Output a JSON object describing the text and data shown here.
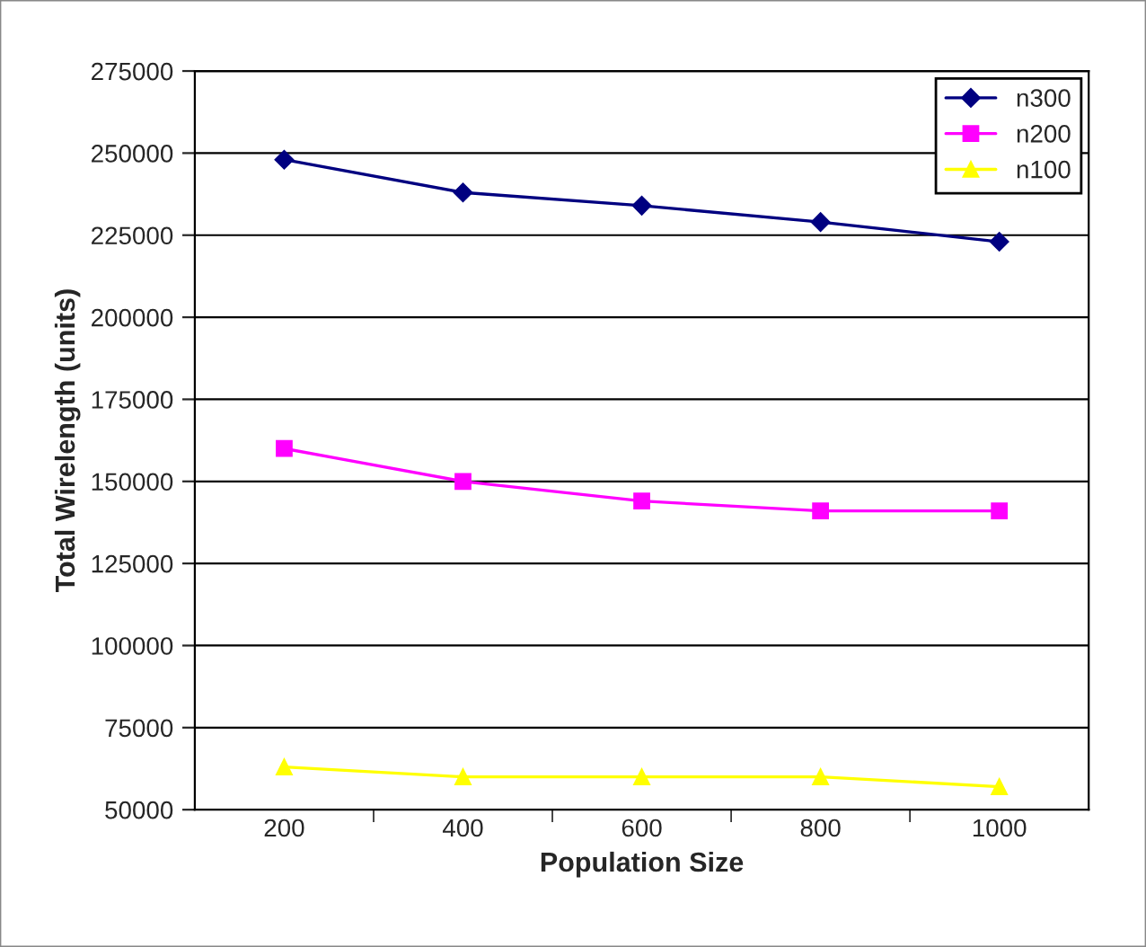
{
  "chart_data": {
    "type": "line",
    "xlabel": "Population Size",
    "ylabel": "Total Wirelength (units)",
    "categories": [
      "200",
      "400",
      "600",
      "800",
      "1000"
    ],
    "series": [
      {
        "name": "n300",
        "color": "#000080",
        "marker": "diamond",
        "values": [
          248000,
          238000,
          234000,
          229000,
          223000
        ]
      },
      {
        "name": "n200",
        "color": "#ff00ff",
        "marker": "square",
        "values": [
          160000,
          150000,
          144000,
          141000,
          141000
        ]
      },
      {
        "name": "n100",
        "color": "#ffff00",
        "marker": "triangle",
        "values": [
          63000,
          60000,
          60000,
          60000,
          57000
        ]
      }
    ],
    "ylim": [
      50000,
      275000
    ],
    "yticks": [
      50000,
      75000,
      100000,
      125000,
      150000,
      175000,
      200000,
      225000,
      250000,
      275000
    ],
    "grid": "y",
    "legend": "top right",
    "line_style": "solid"
  }
}
